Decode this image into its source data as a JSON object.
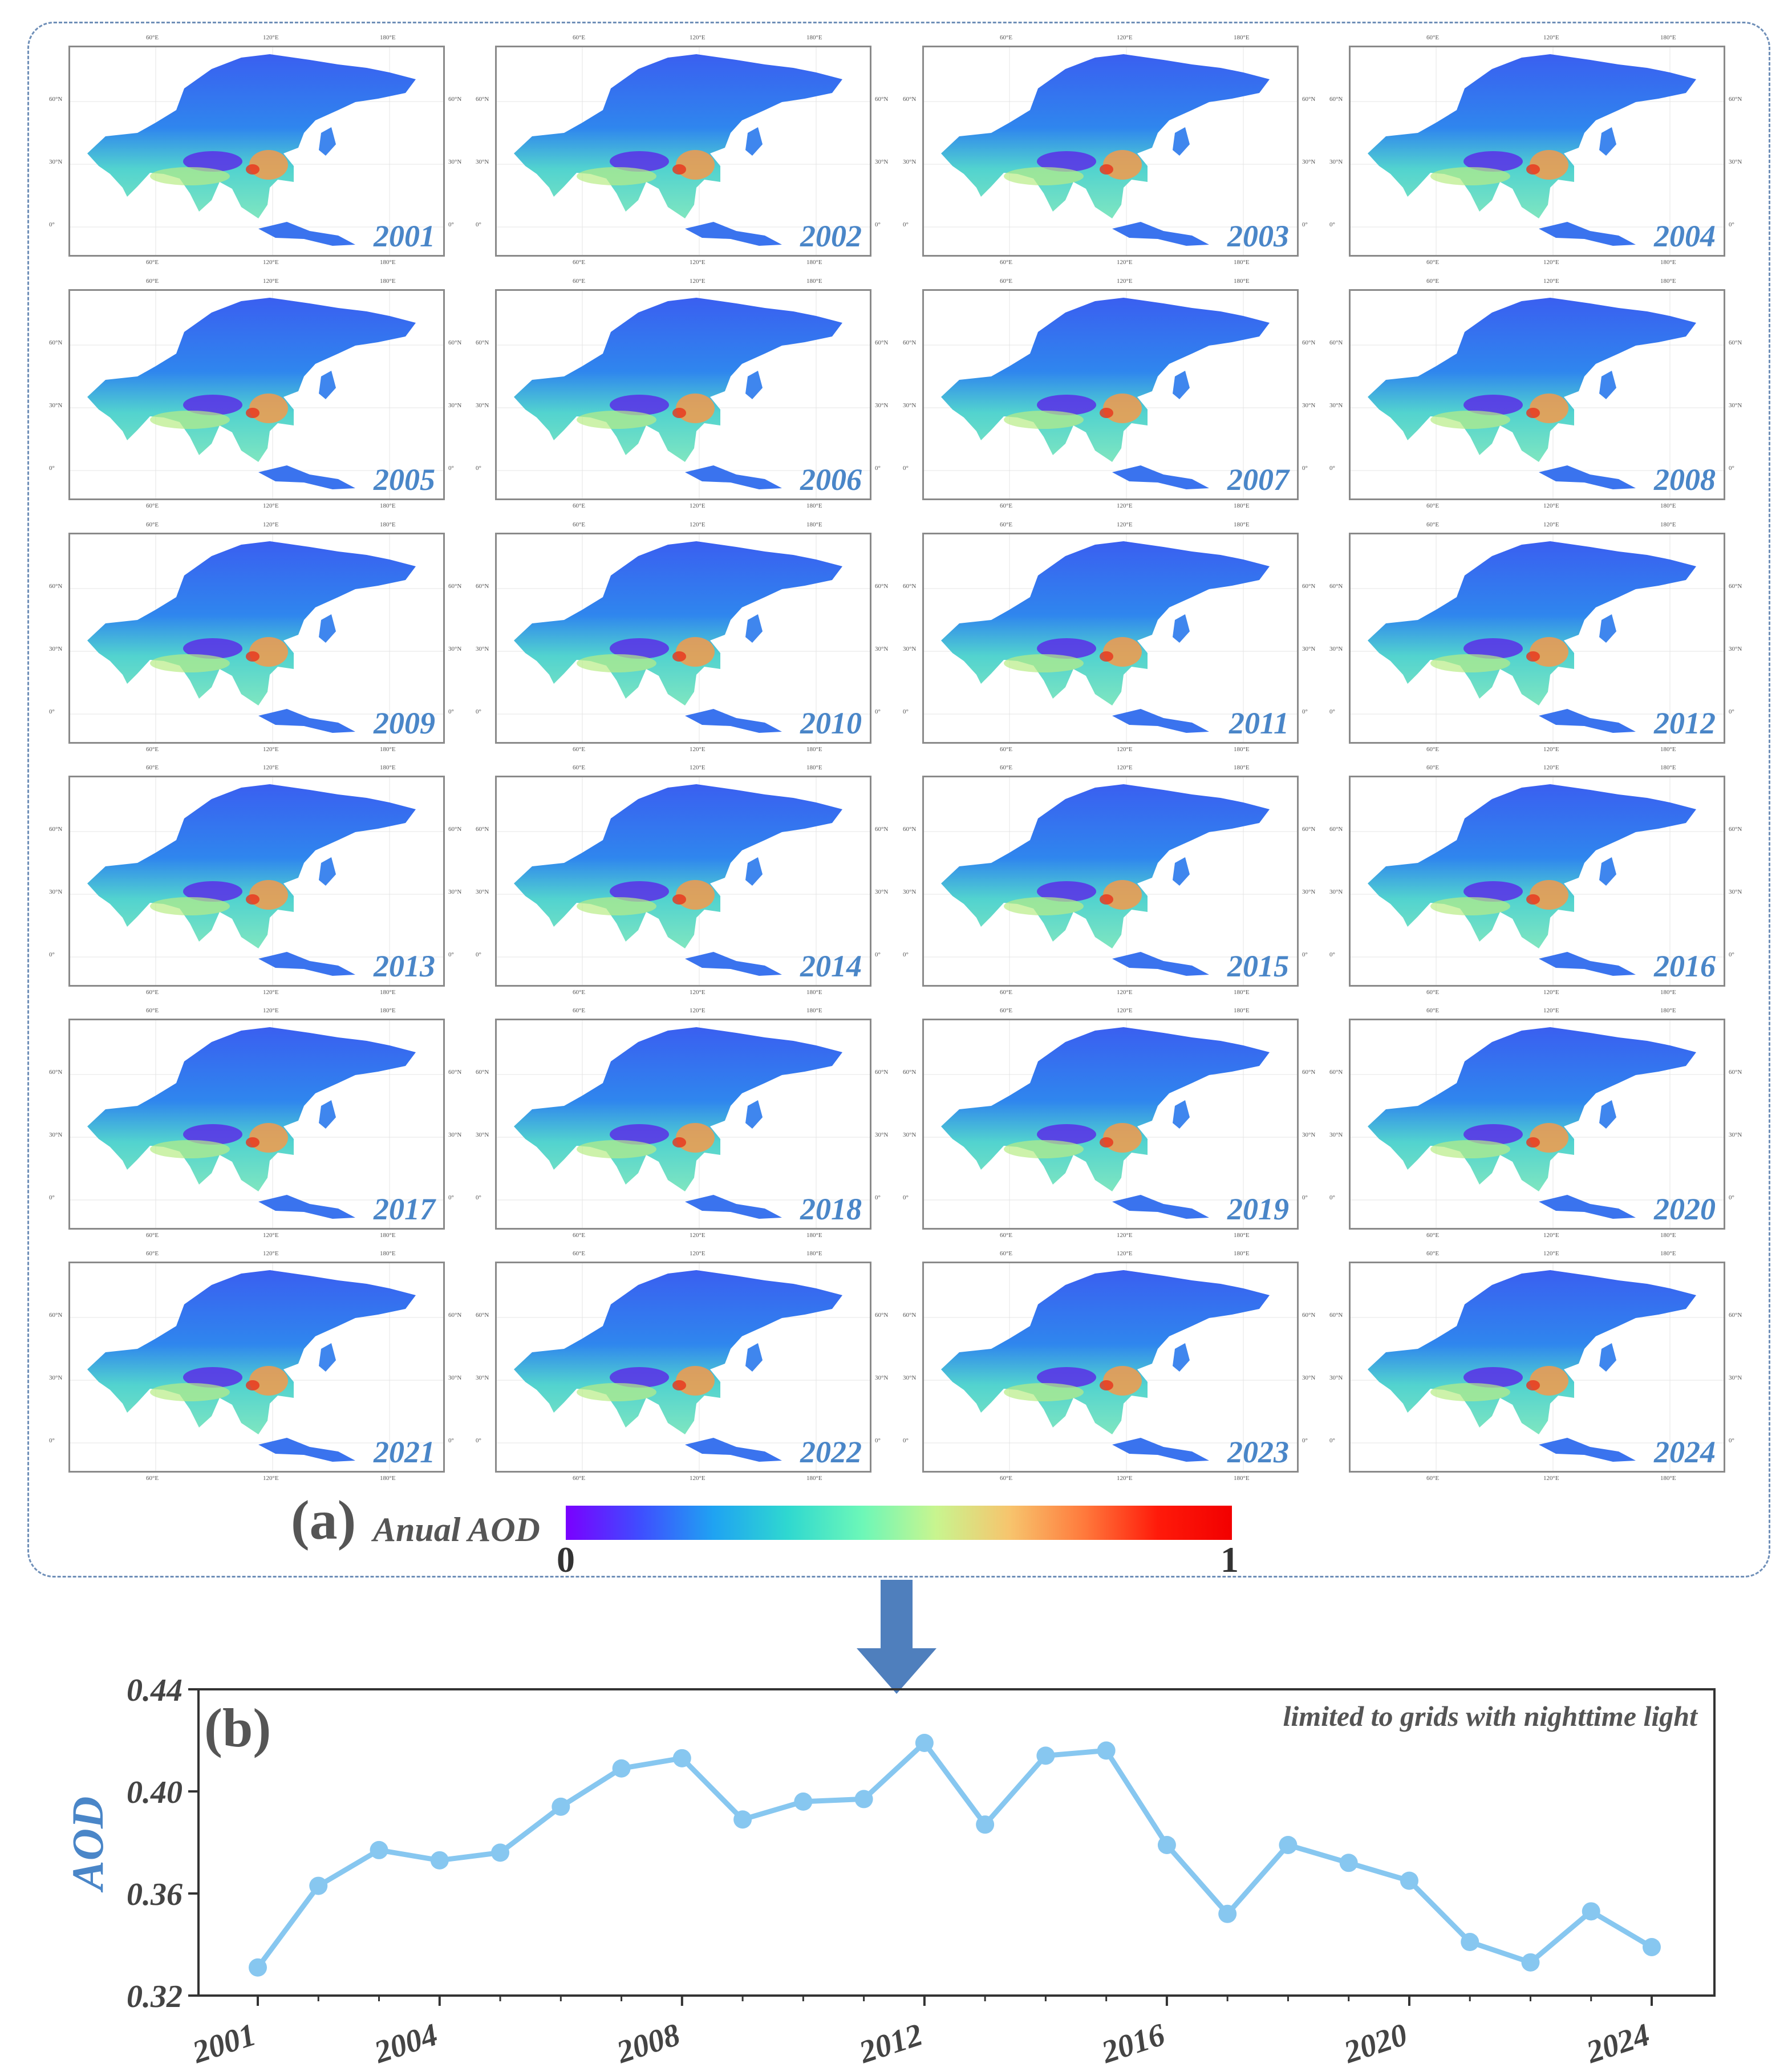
{
  "panel_a": {
    "label": "(a)",
    "colorbar": {
      "title": "Anual AOD",
      "min_label": "0",
      "max_label": "1"
    },
    "map_ticks": {
      "lon_labels": [
        "60°E",
        "120°E",
        "180°E"
      ],
      "lat_labels": [
        "60°N",
        "30°N",
        "0°"
      ]
    },
    "maps": [
      {
        "year": "2001"
      },
      {
        "year": "2002"
      },
      {
        "year": "2003"
      },
      {
        "year": "2004"
      },
      {
        "year": "2005"
      },
      {
        "year": "2006"
      },
      {
        "year": "2007"
      },
      {
        "year": "2008"
      },
      {
        "year": "2009"
      },
      {
        "year": "2010"
      },
      {
        "year": "2011"
      },
      {
        "year": "2012"
      },
      {
        "year": "2013"
      },
      {
        "year": "2014"
      },
      {
        "year": "2015"
      },
      {
        "year": "2016"
      },
      {
        "year": "2017"
      },
      {
        "year": "2018"
      },
      {
        "year": "2019"
      },
      {
        "year": "2020"
      },
      {
        "year": "2021"
      },
      {
        "year": "2022"
      },
      {
        "year": "2023"
      },
      {
        "year": "2024"
      }
    ]
  },
  "colors": {
    "line": "#87c7f0",
    "ylabel": "#4a86c8",
    "arrow": "#4f7fbd",
    "border": "#6f8fb8"
  },
  "chart_data": {
    "type": "line",
    "panel_label": "(b)",
    "annotation": "limited to grids with nighttime light",
    "ylabel": "AOD",
    "xlabel": "",
    "x": [
      2001,
      2002,
      2003,
      2004,
      2005,
      2006,
      2007,
      2008,
      2009,
      2010,
      2011,
      2012,
      2013,
      2014,
      2015,
      2016,
      2017,
      2018,
      2019,
      2020,
      2021,
      2022,
      2023,
      2024
    ],
    "series": [
      {
        "name": "AOD",
        "values": [
          0.331,
          0.363,
          0.377,
          0.373,
          0.376,
          0.394,
          0.409,
          0.413,
          0.389,
          0.396,
          0.397,
          0.419,
          0.387,
          0.414,
          0.416,
          0.379,
          0.352,
          0.379,
          0.372,
          0.365,
          0.341,
          0.333,
          0.353,
          0.339
        ]
      }
    ],
    "xticks": [
      "2001",
      "2004",
      "2008",
      "2012",
      "2016",
      "2020",
      "2024"
    ],
    "yticks": [
      "0.32",
      "0.36",
      "0.40",
      "0.44"
    ],
    "xlim": [
      2001,
      2024
    ],
    "ylim": [
      0.32,
      0.44
    ]
  }
}
